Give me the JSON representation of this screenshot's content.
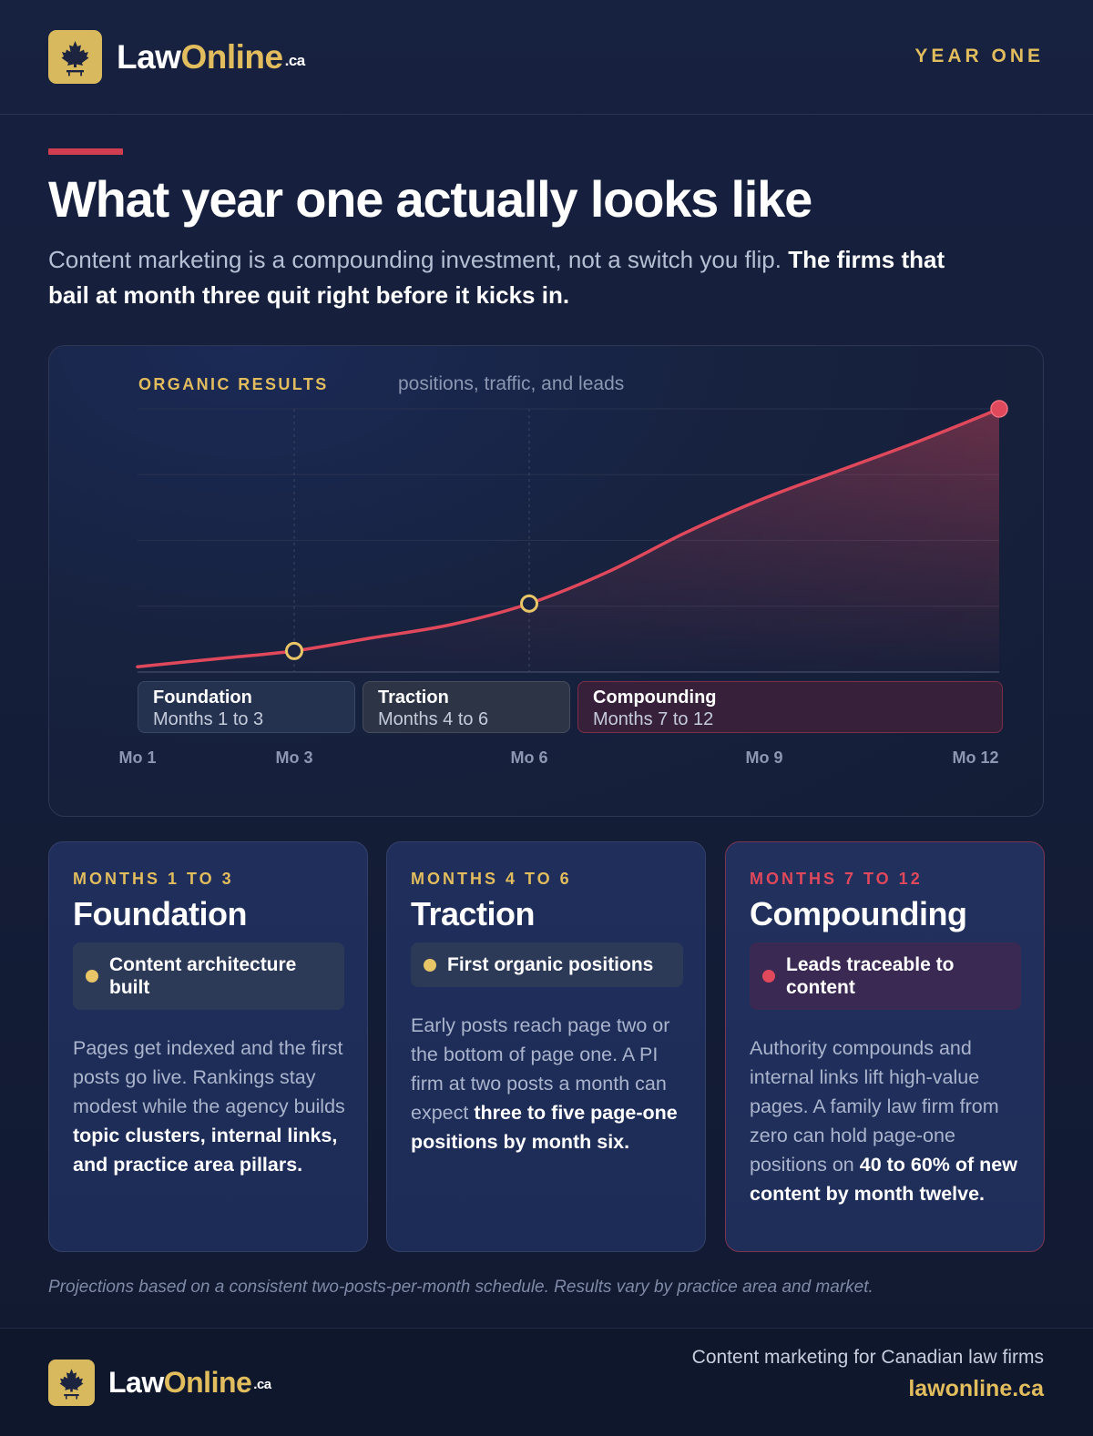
{
  "header": {
    "brand_part1": "Law",
    "brand_part2": "Online",
    "brand_suffix": ".ca",
    "logo_icon": "maple-leaf-icon",
    "tag": "YEAR ONE"
  },
  "hero": {
    "title": "What year one actually looks like",
    "subtitle_plain": "Content marketing is a compounding investment, not a switch you flip.",
    "subtitle_bold": "The firms that bail at month three quit right before it kicks in."
  },
  "chart": {
    "label": "ORGANIC RESULTS",
    "sublabel": "positions, traffic, and leads",
    "phases": [
      {
        "name": "Foundation",
        "range": "Months 1 to 3"
      },
      {
        "name": "Traction",
        "range": "Months 4 to 6"
      },
      {
        "name": "Compounding",
        "range": "Months 7 to 12"
      }
    ]
  },
  "chart_data": {
    "type": "area",
    "title": "ORGANIC RESULTS",
    "subtitle": "positions, traffic, and leads",
    "x_tick_labels": [
      "Mo 1",
      "Mo 3",
      "Mo 6",
      "Mo 9",
      "Mo 12"
    ],
    "x_ticks": [
      1,
      3,
      6,
      9,
      12
    ],
    "xlim": [
      1,
      12
    ],
    "ylim": [
      0,
      100
    ],
    "y_axis_labels_shown": false,
    "grid": "horizontal, 4 lines",
    "series": [
      {
        "x": [
          1,
          2,
          3,
          4,
          5,
          6,
          7,
          8,
          9,
          10,
          11,
          12
        ],
        "y": [
          2,
          5,
          8,
          13,
          18,
          26,
          38,
          53,
          66,
          77,
          88,
          100
        ],
        "color": "#e0485c"
      }
    ],
    "markers": [
      {
        "x": 3,
        "y": 8,
        "style": "hollow-gold"
      },
      {
        "x": 6,
        "y": 26,
        "style": "hollow-gold"
      },
      {
        "x": 12,
        "y": 100,
        "style": "filled-red"
      }
    ],
    "vertical_markers_at": [
      3,
      6
    ]
  },
  "cards": [
    {
      "eyebrow": "MONTHS 1 TO 3",
      "title": "Foundation",
      "milestone": "Content architecture built",
      "body_plain": "Pages get indexed and the first posts go live. Rankings stay modest while the agency builds",
      "body_bold": "topic clusters, internal links, and practice area pillars."
    },
    {
      "eyebrow": "MONTHS 4 TO 6",
      "title": "Traction",
      "milestone": "First organic positions",
      "body_plain": "Early posts reach page two or the bottom of page one. A PI firm at two posts a month can expect",
      "body_bold": "three to five page-one positions by month six."
    },
    {
      "eyebrow": "MONTHS 7 TO 12",
      "title": "Compounding",
      "milestone": "Leads traceable to content",
      "body_plain": "Authority compounds and internal links lift high-value pages. A family law firm from zero can hold page-one positions on",
      "body_bold": "40 to 60% of new content by month twelve."
    }
  ],
  "footnote": "Projections based on a consistent two-posts-per-month schedule. Results vary by practice area and market.",
  "footer": {
    "brand_part1": "Law",
    "brand_part2": "Online",
    "brand_suffix": ".ca",
    "tagline": "Content marketing for Canadian law firms",
    "url": "lawonline.ca"
  },
  "colors": {
    "background": "#141d36",
    "gold": "#e2bd5e",
    "red": "#e0485c",
    "card": "#1f2e5a"
  }
}
